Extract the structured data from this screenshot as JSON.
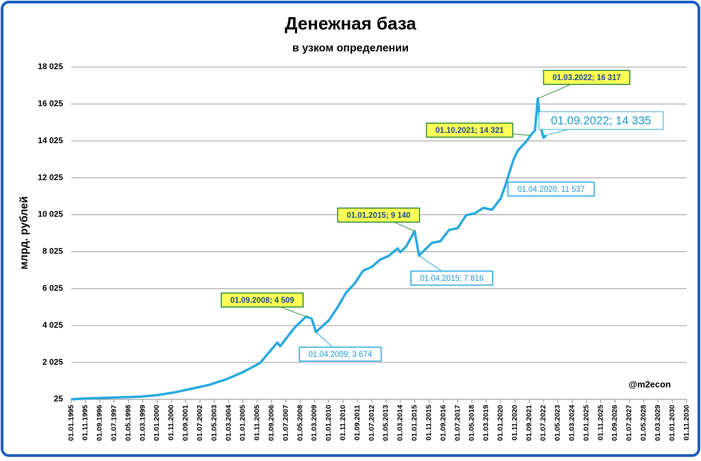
{
  "chart_data": {
    "type": "line",
    "title": "Денежная база",
    "subtitle": "в узком определении",
    "y_label": "млрд. рублей",
    "watermark": "@m2econ",
    "xlim": [
      "01.01.1995",
      "01.11.2030"
    ],
    "xticks": [
      "01.01.1995",
      "01.11.1995",
      "01.09.1996",
      "01.07.1997",
      "01.05.1998",
      "01.03.1999",
      "01.01.2000",
      "01.11.2000",
      "01.09.2001",
      "01.07.2002",
      "01.05.2003",
      "01.03.2004",
      "01.01.2005",
      "01.11.2005",
      "01.09.2006",
      "01.07.2007",
      "01.05.2008",
      "01.03.2009",
      "01.01.2010",
      "01.11.2010",
      "01.09.2011",
      "01.07.2012",
      "01.05.2013",
      "01.03.2014",
      "01.01.2015",
      "01.11.2015",
      "01.09.2016",
      "01.07.2017",
      "01.05.2018",
      "01.03.2019",
      "01.01.2020",
      "01.11.2020",
      "01.09.2021",
      "01.07.2022",
      "01.05.2023",
      "01.03.2024",
      "01.01.2025",
      "01.11.2025",
      "01.09.2026",
      "01.07.2027",
      "01.05.2028",
      "01.03.2029",
      "01.01.2030",
      "01.11.2030"
    ],
    "ylim": [
      25,
      18025
    ],
    "yticks": [
      25,
      {
        "value": 2025,
        "label": "2 025"
      },
      {
        "value": 4025,
        "label": "4 025"
      },
      {
        "value": 6025,
        "label": "6 025"
      },
      {
        "value": 8025,
        "label": "8 025"
      },
      {
        "value": 10025,
        "label": "10 025"
      },
      {
        "value": 12025,
        "label": "12 025"
      },
      {
        "value": 14025,
        "label": "14 025"
      },
      {
        "value": 16025,
        "label": "16 025"
      },
      {
        "value": 18025,
        "label": "18 025"
      }
    ],
    "grid": true,
    "series": [
      {
        "name": "Денежная база",
        "color": "#29a9e0",
        "x": [
          "01.01.1995",
          "01.01.1996",
          "01.01.1997",
          "01.01.1998",
          "01.01.1999",
          "01.01.2000",
          "01.01.2001",
          "01.01.2002",
          "01.01.2003",
          "01.01.2004",
          "01.01.2005",
          "01.01.2006",
          "01.01.2007",
          "01.03.2007",
          "01.01.2008",
          "01.09.2008",
          "01.01.2009",
          "01.04.2009",
          "01.01.2010",
          "01.07.2010",
          "01.01.2011",
          "01.07.2011",
          "01.01.2012",
          "01.07.2012",
          "01.01.2013",
          "01.07.2013",
          "01.01.2014",
          "01.03.2014",
          "01.07.2014",
          "01.01.2015",
          "01.04.2015",
          "01.01.2016",
          "01.07.2016",
          "01.01.2017",
          "01.07.2017",
          "01.01.2018",
          "01.07.2018",
          "01.01.2019",
          "01.07.2019",
          "01.01.2020",
          "01.04.2020",
          "01.10.2020",
          "01.01.2021",
          "01.07.2021",
          "01.10.2021",
          "01.01.2022",
          "01.03.2022",
          "01.05.2022",
          "01.07.2022",
          "01.09.2022"
        ],
        "values": [
          30,
          80,
          110,
          140,
          170,
          250,
          400,
          600,
          800,
          1100,
          1500,
          2000,
          3100,
          2900,
          3900,
          4509,
          4400,
          3674,
          4300,
          5000,
          5800,
          6300,
          7000,
          7200,
          7600,
          7800,
          8200,
          8000,
          8300,
          9140,
          7816,
          8500,
          8600,
          9200,
          9300,
          10000,
          10100,
          10400,
          10300,
          10900,
          11537,
          13000,
          13500,
          14000,
          14321,
          14600,
          16317,
          14800,
          14200,
          14335
        ]
      }
    ],
    "annotations": [
      {
        "text": "01.09.2008; 4 509",
        "x": "01.09.2008",
        "y": 4509
      },
      {
        "text": "01.04.2009; 3 674",
        "x": "01.04.2009",
        "y": 3674
      },
      {
        "text": "01.01.2015; 9 140",
        "x": "01.01.2015",
        "y": 9140
      },
      {
        "text": "01.04.2015; 7 816",
        "x": "01.04.2015",
        "y": 7816
      },
      {
        "text": "01.04.2020; 11 537",
        "x": "01.04.2020",
        "y": 11537
      },
      {
        "text": "01.10.2021; 14 321",
        "x": "01.10.2021",
        "y": 14321
      },
      {
        "text": "01.03.2022; 16 317",
        "x": "01.03.2022",
        "y": 16317
      },
      {
        "text": "01.09.2022; 14 335",
        "x": "01.09.2022",
        "y": 14335
      }
    ]
  }
}
